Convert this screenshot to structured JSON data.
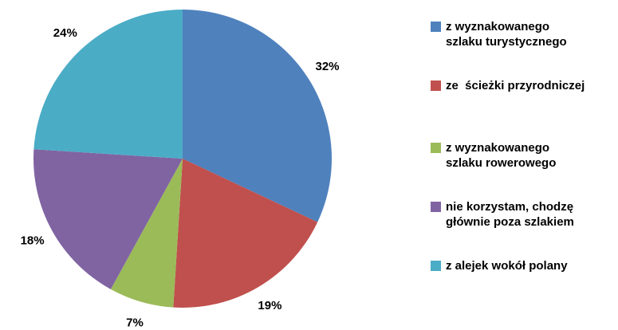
{
  "chart_data": {
    "type": "pie",
    "categories": [
      "z wyznakowanego\nszlaku turystycznego",
      "ze  ścieżki przyrodniczej",
      "z wyznakowanego\nszlaku rowerowego",
      "nie korzystam, chodzę\ngłównie poza szlakiem",
      "z alejek wokół polany"
    ],
    "values": [
      32,
      19,
      7,
      18,
      24
    ],
    "value_labels": [
      "32%",
      "19%",
      "7%",
      "18%",
      "24%"
    ],
    "colors": [
      "#4f81bd",
      "#c0504d",
      "#9bbb59",
      "#8064a2",
      "#4bacc6"
    ],
    "legend": "right"
  }
}
